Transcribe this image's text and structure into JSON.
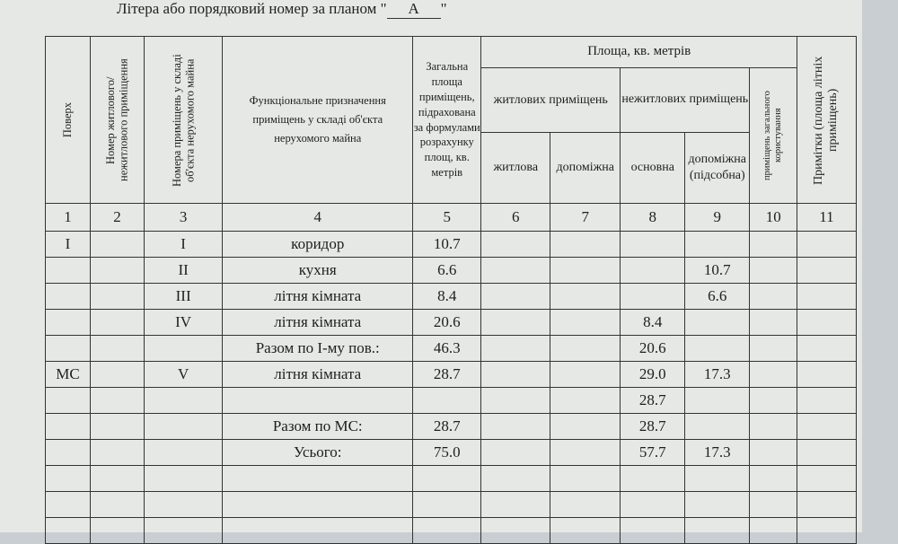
{
  "header": {
    "label": "Літера або порядковий номер за планом \"",
    "letter": "А",
    "close": "\""
  },
  "table": {
    "columns": {
      "floor": "Поверх",
      "unit_number": "Номер житлового/ нежитлового приміщення",
      "room_numbers": "Номера приміщень у складі об'єкта нерухомого майна",
      "purpose": "Функціональне призначення приміщень у складі об'єкта нерухомого майна",
      "total": "Загальна площа приміщень, підрахована за формулами розрахунку площ, кв. метрів",
      "area": "Площа, кв. метрів",
      "residential": "житлових приміщень",
      "living": "житлова",
      "aux": "допоміжна",
      "nonresidential": "нежитлових приміщень",
      "main": "основна",
      "aux_nonres": "допоміжна (підсобна)",
      "common": "приміщень загального користування",
      "notes": "Примітки (площа літніх приміщень)"
    },
    "numbers": [
      1,
      2,
      3,
      4,
      5,
      6,
      7,
      8,
      9,
      10,
      11
    ],
    "rows": [
      [
        "I",
        null,
        "I",
        "коридор",
        "10.7",
        null,
        null,
        null,
        null,
        null,
        null
      ],
      [
        null,
        null,
        "II",
        "кухня",
        "6.6",
        null,
        null,
        null,
        "10.7",
        null,
        null
      ],
      [
        null,
        null,
        "III",
        "літня кімната",
        "8.4",
        null,
        null,
        null,
        "6.6",
        null,
        null
      ],
      [
        null,
        null,
        "IV",
        "літня кімната",
        "20.6",
        null,
        null,
        "8.4",
        null,
        null,
        null
      ],
      [
        null,
        null,
        null,
        "Разом по І-му пов.:",
        "46.3",
        null,
        null,
        "20.6",
        null,
        null,
        null
      ],
      [
        "МС",
        null,
        "V",
        "літня кімната",
        "28.7",
        null,
        null,
        "29.0",
        "17.3",
        null,
        null
      ],
      [
        null,
        null,
        null,
        null,
        null,
        null,
        null,
        "28.7",
        null,
        null,
        null
      ],
      [
        null,
        null,
        null,
        "Разом по МС:",
        "28.7",
        null,
        null,
        "28.7",
        null,
        null,
        null
      ],
      [
        null,
        null,
        null,
        "Усього:",
        "75.0",
        null,
        null,
        "57.7",
        "17.3",
        null,
        null
      ]
    ]
  }
}
